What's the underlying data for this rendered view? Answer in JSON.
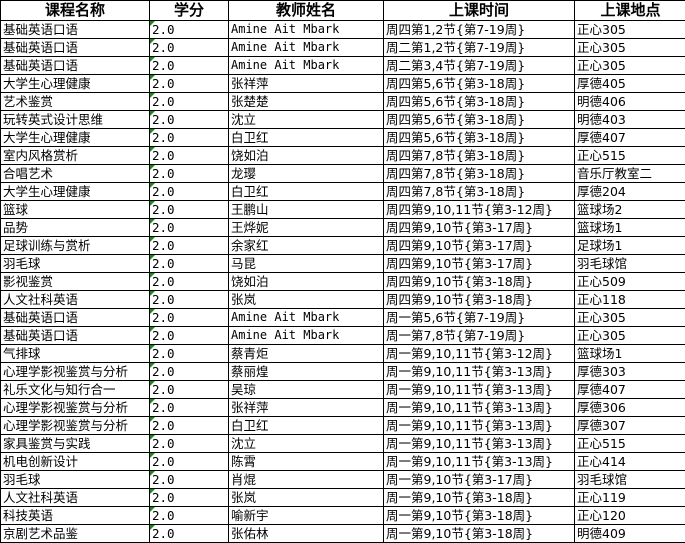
{
  "headers": [
    "课程名称",
    "学分",
    "教师姓名",
    "上课时间",
    "上课地点"
  ],
  "rows": [
    [
      "基础英语口语",
      "2.0",
      "Amine Ait Mbark",
      "周四第1,2节{第7-19周}",
      "正心305"
    ],
    [
      "基础英语口语",
      "2.0",
      "Amine Ait Mbark",
      "周二第1,2节{第7-19周}",
      "正心305"
    ],
    [
      "基础英语口语",
      "2.0",
      "Amine Ait Mbark",
      "周二第3,4节{第7-19周}",
      "正心305"
    ],
    [
      "大学生心理健康",
      "2.0",
      "张祥萍",
      "周四第5,6节{第3-18周}",
      "厚德405"
    ],
    [
      "艺术鉴赏",
      "2.0",
      "张楚楚",
      "周四第5,6节{第3-18周}",
      "明德406"
    ],
    [
      "玩转英式设计思维",
      "2.0",
      "沈立",
      "周四第5,6节{第3-18周}",
      "明德403"
    ],
    [
      "大学生心理健康",
      "2.0",
      "白卫红",
      "周四第5,6节{第3-18周}",
      "厚德407"
    ],
    [
      "室内风格赏析",
      "2.0",
      "饶如泊",
      "周四第7,8节{第3-18周}",
      "正心515"
    ],
    [
      "合唱艺术",
      "2.0",
      "龙璎",
      "周四第7,8节{第3-18周}",
      "音乐厅教室二"
    ],
    [
      "大学生心理健康",
      "2.0",
      "白卫红",
      "周四第7,8节{第3-18周}",
      "厚德204"
    ],
    [
      "篮球",
      "2.0",
      "王鹏山",
      "周四第9,10,11节{第3-12周}",
      "篮球场2"
    ],
    [
      "品势",
      "2.0",
      "王烨妮",
      "周四第9,10节{第3-17周}",
      "篮球场1"
    ],
    [
      "足球训练与赏析",
      "2.0",
      "余家红",
      "周四第9,10节{第3-17周}",
      "足球场1"
    ],
    [
      "羽毛球",
      "2.0",
      "马昆",
      "周四第9,10节{第3-17周}",
      "羽毛球馆"
    ],
    [
      "影视鉴赏",
      "2.0",
      "饶如泊",
      "周四第9,10节{第3-18周}",
      "正心509"
    ],
    [
      "人文社科英语",
      "2.0",
      "张岚",
      "周四第9,10节{第3-18周}",
      "正心118"
    ],
    [
      "基础英语口语",
      "2.0",
      "Amine Ait Mbark",
      "周一第5,6节{第7-19周}",
      "正心305"
    ],
    [
      "基础英语口语",
      "2.0",
      "Amine Ait Mbark",
      "周一第7,8节{第7-19周}",
      "正心305"
    ],
    [
      "气排球",
      "2.0",
      "蔡青炬",
      "周一第9,10,11节{第3-12周}",
      "篮球场1"
    ],
    [
      "心理学影视鉴赏与分析",
      "2.0",
      "蔡丽煌",
      "周一第9,10,11节{第3-13周}",
      "厚德303"
    ],
    [
      "礼乐文化与知行合一",
      "2.0",
      "吴琼",
      "周一第9,10,11节{第3-13周}",
      "厚德407"
    ],
    [
      "心理学影视鉴赏与分析",
      "2.0",
      "张祥萍",
      "周一第9,10,11节{第3-13周}",
      "厚德306"
    ],
    [
      "心理学影视鉴赏与分析",
      "2.0",
      "白卫红",
      "周一第9,10,11节{第3-13周}",
      "厚德307"
    ],
    [
      "家具鉴赏与实践",
      "2.0",
      "沈立",
      "周一第9,10,11节{第3-13周}",
      "正心515"
    ],
    [
      "机电创新设计",
      "2.0",
      "陈霄",
      "周一第9,10,11节{第3-13周}",
      "正心414"
    ],
    [
      "羽毛球",
      "2.0",
      "肖焜",
      "周一第9,10节{第3-17周}",
      "羽毛球馆"
    ],
    [
      "人文社科英语",
      "2.0",
      "张岚",
      "周一第9,10节{第3-18周}",
      "正心119"
    ],
    [
      "科技英语",
      "2.0",
      "喻新宇",
      "周一第9,10节{第3-18周}",
      "正心120"
    ],
    [
      "京剧艺术品鉴",
      "2.0",
      "张佑林",
      "周一第9,10节{第3-18周}",
      "明德409"
    ]
  ],
  "colors": {
    "grid": "#000000",
    "error_indicator": "#1a8a1a"
  }
}
